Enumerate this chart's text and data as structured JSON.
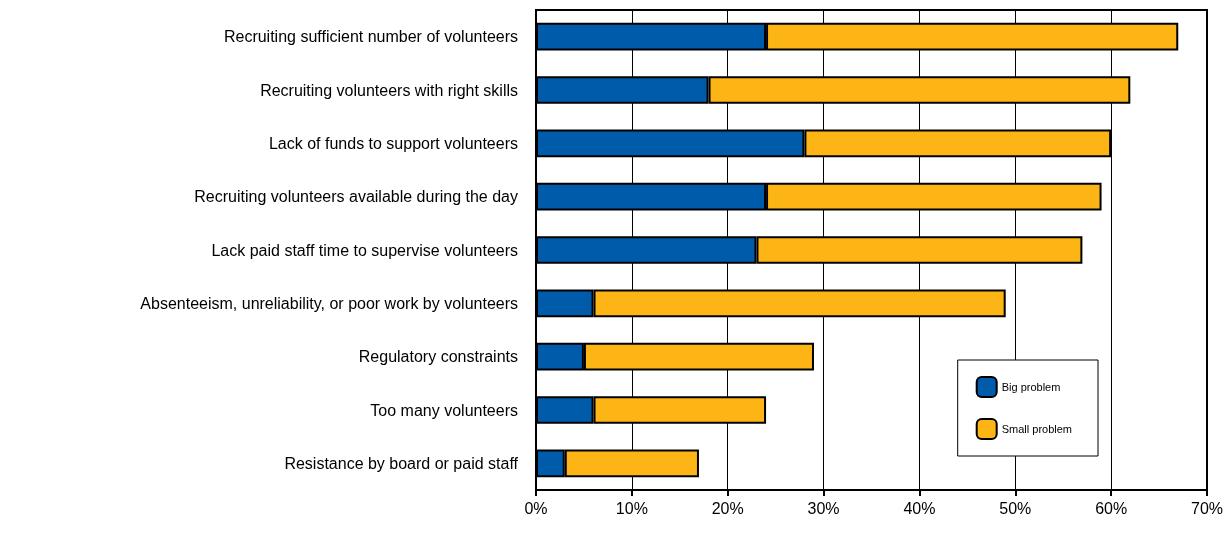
{
  "chart_data": {
    "type": "bar",
    "orientation": "horizontal",
    "stacked": true,
    "categories": [
      "Recruiting sufficient number of volunteers",
      "Recruiting volunteers with right skills",
      "Lack of funds to support volunteers",
      "Recruiting volunteers available during the day",
      "Lack paid staff time to supervise volunteers",
      "Absenteeism, unreliability, or poor work by volunteers",
      "Regulatory constraints",
      "Too many volunteers",
      "Resistance by board or paid staff"
    ],
    "series": [
      {
        "name": "Big problem",
        "color": "#005bab",
        "values": [
          24,
          18,
          28,
          24,
          23,
          6,
          5,
          6,
          3
        ]
      },
      {
        "name": "Small problem",
        "color": "#fdb515",
        "values": [
          43,
          44,
          32,
          35,
          34,
          43,
          24,
          18,
          14
        ]
      }
    ],
    "xlim": [
      0,
      70
    ],
    "xticks": [
      {
        "value": 0,
        "label": "0%"
      },
      {
        "value": 10,
        "label": "10%"
      },
      {
        "value": 20,
        "label": "20%"
      },
      {
        "value": 30,
        "label": "30%"
      },
      {
        "value": 40,
        "label": "40%"
      },
      {
        "value": 50,
        "label": "50%"
      },
      {
        "value": 60,
        "label": "60%"
      },
      {
        "value": 70,
        "label": "70%"
      }
    ],
    "grid": "x",
    "legend": "bottom right"
  }
}
